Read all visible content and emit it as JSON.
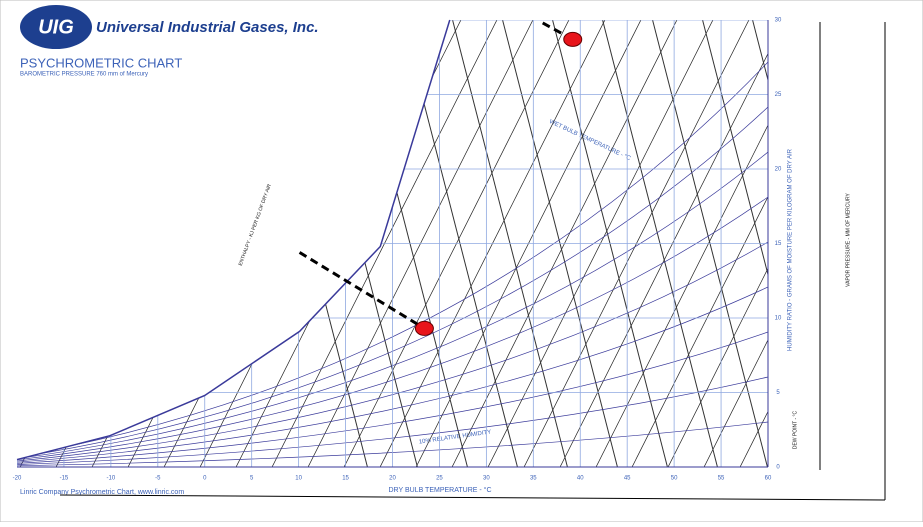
{
  "chart_data": {
    "type": "psychrometric",
    "company": "Universal Industrial Gases, Inc.",
    "logo": "UIG",
    "title": "PSYCHROMETRIC CHART",
    "subtitle": "BAROMETRIC PRESSURE 760 mm of Mercury",
    "footer": "Linric Company Psychrometric Chart, www.linric.com",
    "x_label": "DRY BULB TEMPERATURE - °C",
    "y_label": "HUMIDITY RATIO - GRAMS OF MOISTURE PER KILOGRAM OF DRY AIR",
    "annotations": [
      "WET BULB TEMPERATURE - °C",
      "10% RELATIVE HUMIDITY",
      "ENTHALPY - KJ PER KG OF DRY AIR",
      "DEW POINT - °C",
      "VAPOR PRESSURE - MM OF MERCURY"
    ],
    "xlim": [
      -20,
      60
    ],
    "xticks": [
      -20,
      -15,
      -10,
      -5,
      0,
      5,
      10,
      15,
      20,
      25,
      30,
      35,
      40,
      45,
      50,
      55,
      60
    ],
    "ylim": [
      0,
      30
    ],
    "yticks": [
      0,
      5,
      10,
      15,
      20,
      25,
      30
    ],
    "grid": true,
    "grid_color": "#8fa8e0",
    "saturation": {
      "x": [
        -20,
        -10.1,
        0.0,
        10.1,
        18.7,
        26.1
      ],
      "values": [
        0.5,
        2.1,
        4.8,
        9.1,
        14.8,
        30
      ],
      "color": "#3a3a9a"
    },
    "points": {
      "x": [
        23.4,
        39.2
      ],
      "values": [
        9.3,
        28.7
      ],
      "color": "#e8141b"
    },
    "leaders": [
      {
        "x": [
          10.1,
          23.4
        ],
        "values": [
          14.4,
          9.3
        ]
      },
      {
        "x": [
          36,
          39.2
        ],
        "values": [
          29.8,
          28.7
        ]
      }
    ]
  }
}
